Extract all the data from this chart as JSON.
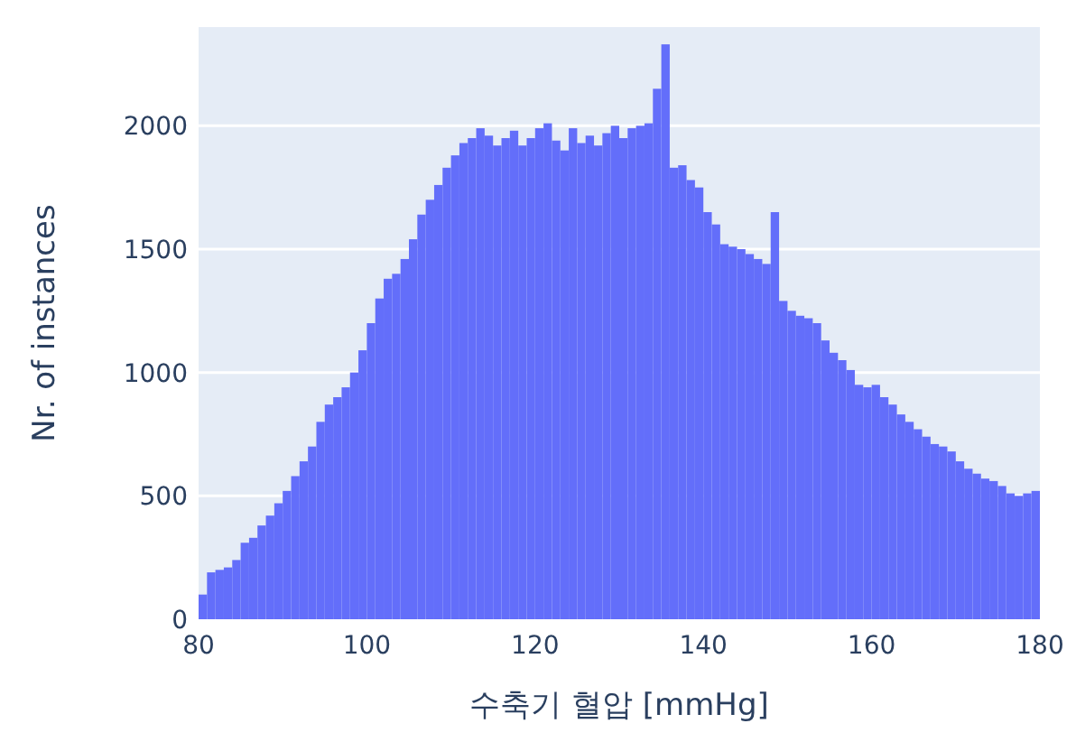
{
  "chart_data": {
    "type": "histogram",
    "xlabel": "수축기 혈압 [mmHg]",
    "ylabel": "Nr. of instances",
    "color": "#636efa",
    "bins": [
      80,
      81,
      82,
      83,
      84,
      85,
      86,
      87,
      88,
      89,
      90,
      91,
      92,
      93,
      94,
      95,
      96,
      97,
      98,
      99,
      100,
      101,
      102,
      103,
      104,
      105,
      106,
      107,
      108,
      109,
      110,
      111,
      112,
      113,
      114,
      115,
      116,
      117,
      118,
      119,
      120,
      121,
      122,
      123,
      124,
      125,
      126,
      127,
      128,
      129,
      130,
      131,
      132,
      133,
      134,
      135,
      136,
      137,
      138,
      139,
      140,
      141,
      142,
      143,
      144,
      145,
      146,
      147,
      148,
      149,
      150,
      151,
      152,
      153,
      154,
      155,
      156,
      157,
      158,
      159,
      160,
      161,
      162,
      163,
      164,
      165,
      166,
      167,
      168,
      169,
      170,
      171,
      172,
      173,
      174,
      175,
      176,
      177,
      178,
      179,
      180
    ],
    "values": [
      100,
      190,
      200,
      210,
      240,
      310,
      330,
      380,
      420,
      470,
      520,
      580,
      640,
      700,
      800,
      870,
      900,
      940,
      1000,
      1090,
      1200,
      1300,
      1380,
      1400,
      1460,
      1540,
      1640,
      1700,
      1760,
      1830,
      1880,
      1930,
      1950,
      1990,
      1960,
      1920,
      1950,
      1980,
      1920,
      1950,
      1990,
      2010,
      1940,
      1900,
      1990,
      1930,
      1960,
      1920,
      1970,
      2000,
      1950,
      1990,
      2000,
      2010,
      2150,
      2330,
      1830,
      1840,
      1780,
      1750,
      1650,
      1600,
      1520,
      1510,
      1500,
      1480,
      1460,
      1440,
      1650,
      1290,
      1250,
      1230,
      1220,
      1200,
      1130,
      1080,
      1050,
      1010,
      950,
      940,
      950,
      900,
      870,
      830,
      800,
      770,
      740,
      710,
      700,
      680,
      640,
      610,
      590,
      570,
      560,
      540,
      510,
      500,
      510,
      520
    ],
    "xlim": [
      80,
      180
    ],
    "ylim": [
      0,
      2400
    ],
    "xticks": [
      80,
      100,
      120,
      140,
      160,
      180
    ],
    "yticks": [
      0,
      500,
      1000,
      1500,
      2000
    ],
    "grid": "y"
  }
}
